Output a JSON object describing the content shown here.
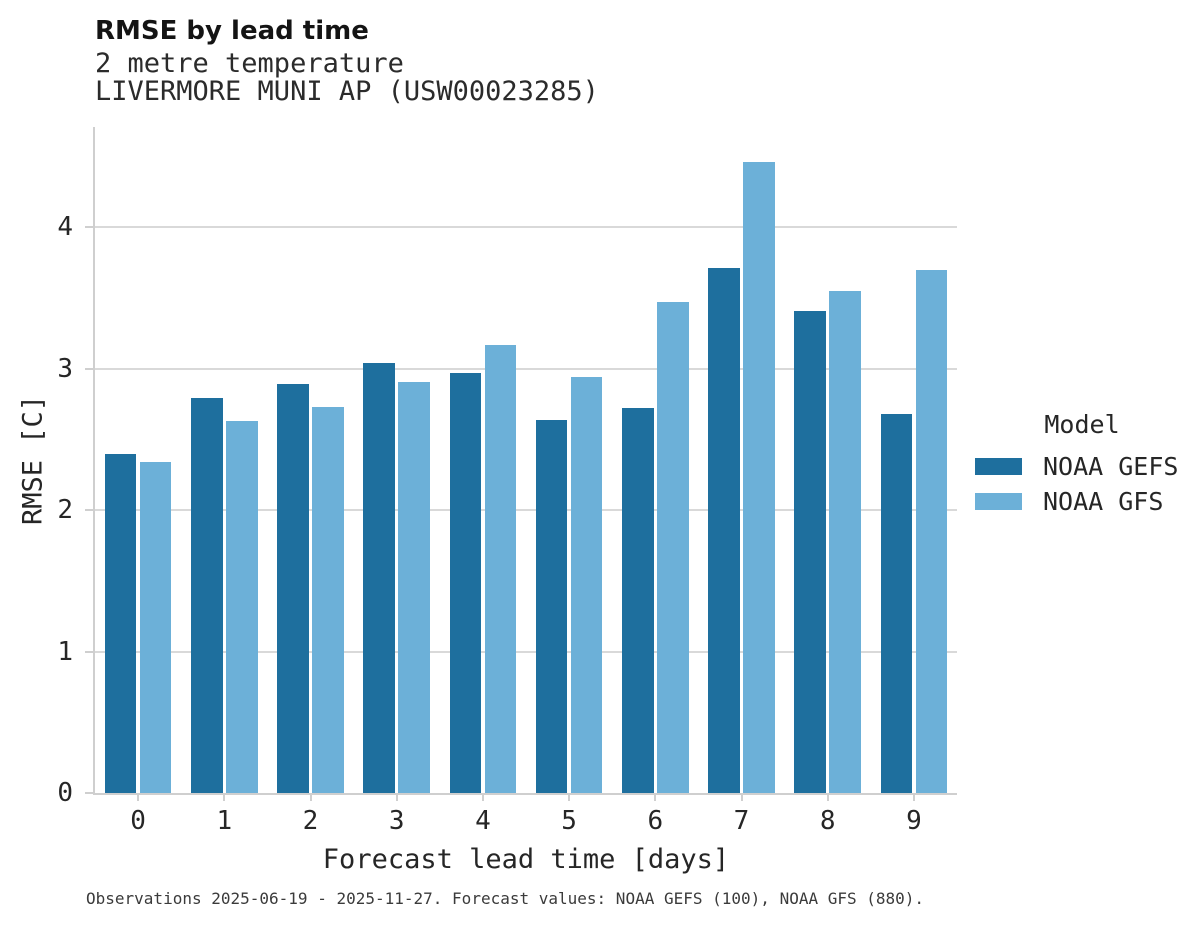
{
  "header": {
    "title": "RMSE by lead time",
    "subtitle": "2 metre temperature",
    "station": "LIVERMORE MUNI AP (USW00023285)"
  },
  "chart_data": {
    "type": "bar",
    "title": "RMSE by lead time",
    "subtitle": "2 metre temperature",
    "station": "LIVERMORE MUNI AP (USW00023285)",
    "xlabel": "Forecast lead time [days]",
    "ylabel": "RMSE [C]",
    "categories": [
      "0",
      "1",
      "2",
      "3",
      "4",
      "5",
      "6",
      "7",
      "8",
      "9"
    ],
    "y_ticks": [
      0,
      1,
      2,
      3,
      4
    ],
    "ylim": [
      0,
      4.71
    ],
    "grid": "horizontal",
    "legend": {
      "title": "Model",
      "position": "right-center"
    },
    "series": [
      {
        "name": "NOAA GEFS",
        "color": "#1e6f9e",
        "values": [
          2.4,
          2.79,
          2.89,
          3.04,
          2.97,
          2.64,
          2.72,
          3.71,
          3.41,
          2.68
        ]
      },
      {
        "name": "NOAA GFS",
        "color": "#6cb0d8",
        "values": [
          2.34,
          2.63,
          2.73,
          2.91,
          3.17,
          2.94,
          3.47,
          4.46,
          3.55,
          3.7
        ]
      }
    ]
  },
  "footer": {
    "note": "Observations 2025-06-19 - 2025-11-27. Forecast values: NOAA GEFS (100), NOAA GFS (880)."
  },
  "colors": {
    "gridline": "#d9d9d9",
    "spine": "#cfcfcf",
    "title_text": "#141414",
    "subtitle_text": "#2b2b2b",
    "tick_text": "#262626",
    "footer_text": "#3b3b3b"
  }
}
